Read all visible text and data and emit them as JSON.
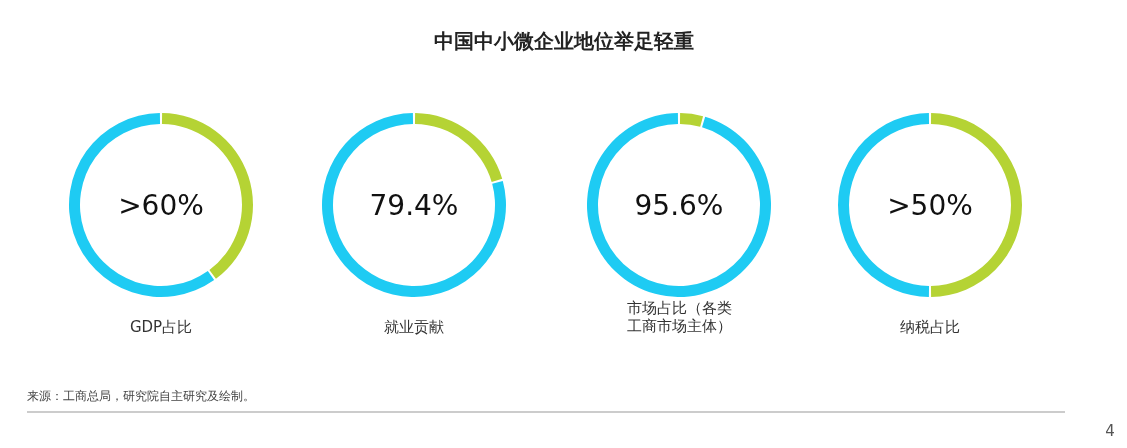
{
  "chart_data": [
    {
      "type": "donut",
      "title": "中国中小微企业地位举足轻重",
      "categories": [
        null,
        null
      ],
      "values": [
        40,
        60
      ],
      "colors": [
        "#b5d334",
        "#1ecbf3"
      ],
      "annotations": [
        ">60%"
      ],
      "xlabel": "GDP占比"
    },
    {
      "type": "donut",
      "categories": [
        null,
        null
      ],
      "values": [
        20.6,
        79.4
      ],
      "colors": [
        "#b5d334",
        "#1ecbf3"
      ],
      "annotations": [
        "79.4%"
      ],
      "xlabel": "就业贡献"
    },
    {
      "type": "donut",
      "categories": [
        null,
        null
      ],
      "values": [
        4.4,
        95.6
      ],
      "colors": [
        "#b5d334",
        "#1ecbf3"
      ],
      "annotations": [
        "95.6%"
      ],
      "xlabel": "市场占比（各类工商市场主体）"
    },
    {
      "type": "donut",
      "categories": [
        null,
        null
      ],
      "values": [
        50,
        50
      ],
      "colors": [
        "#b5d334",
        "#1ecbf3"
      ],
      "annotations": [
        ">50%"
      ],
      "xlabel": "纳税占比"
    },
    {
      "type": "other",
      "annotations": [
        "来源：工商总局，研究院自主研究及绘制。",
        "4"
      ]
    }
  ]
}
